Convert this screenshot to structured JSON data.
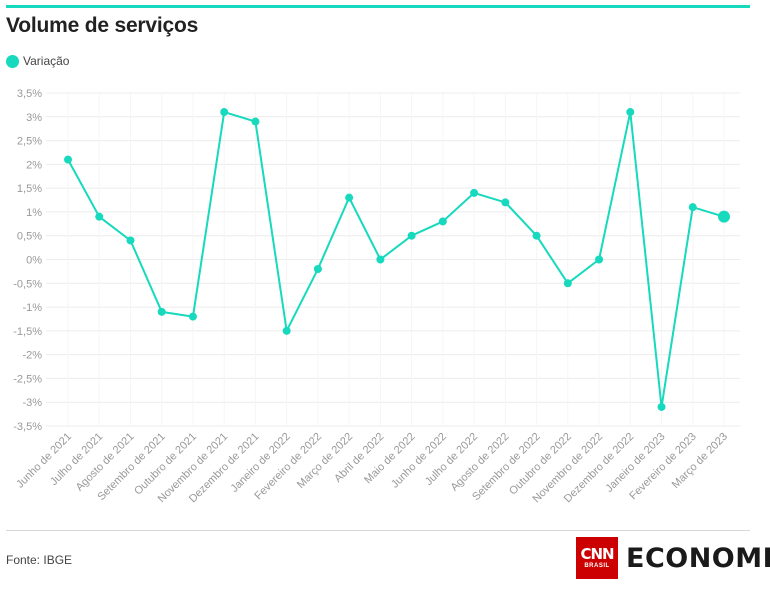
{
  "header": {
    "title": "Volume de serviços"
  },
  "colors": {
    "accent": "#16d9bd",
    "grid": "#ececec",
    "axis_text": "#999999"
  },
  "footer": {
    "source": "Fonte: IBGE",
    "logo_cnn": "CNN",
    "logo_brasil": "BRASIL",
    "logo_section": "ECONOMIA"
  },
  "chart_data": {
    "type": "line",
    "title": "Volume de serviços",
    "xlabel": "",
    "ylabel": "",
    "ylim": [
      -3.5,
      3.5
    ],
    "y_ticks": [
      "3,5%",
      "3%",
      "2,5%",
      "2%",
      "1,5%",
      "1%",
      "0,5%",
      "0%",
      "-0,5%",
      "-1%",
      "-1,5%",
      "-2%",
      "-2,5%",
      "-3%",
      "-3,5%"
    ],
    "grid": true,
    "legend": "top-left",
    "categories": [
      "Junho de 2021",
      "Julho de 2021",
      "Agosto de 2021",
      "Setembro de 2021",
      "Outubro de 2021",
      "Novembro de 2021",
      "Dezembro de 2021",
      "Janeiro de 2022",
      "Fevereiro de 2022",
      "Março de 2022",
      "Abril de 2022",
      "Maio de 2022",
      "Junho de 2022",
      "Julho de 2022",
      "Agosto de 2022",
      "Setembro de 2022",
      "Outubro de 2022",
      "Novembro de 2022",
      "Dezembro de 2022",
      "Janeiro de 2023",
      "Fevereiro de 2023",
      "Março de 2023"
    ],
    "series": [
      {
        "name": "Variação",
        "values": [
          2.1,
          0.9,
          0.4,
          -1.1,
          -1.2,
          3.1,
          2.9,
          -1.5,
          -0.2,
          1.3,
          0.0,
          0.5,
          0.8,
          1.4,
          1.2,
          0.5,
          -0.5,
          0.0,
          3.1,
          -3.1,
          1.1,
          0.9
        ]
      }
    ]
  }
}
